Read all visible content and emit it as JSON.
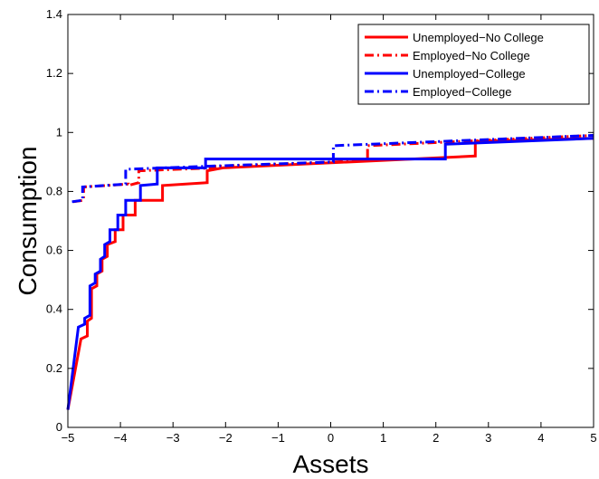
{
  "chart_data": {
    "type": "line",
    "title": "",
    "xlabel": "Assets",
    "ylabel": "Consumption",
    "xlim": [
      -5,
      5
    ],
    "ylim": [
      0,
      1.4
    ],
    "xticks": [
      -5,
      -4,
      -3,
      -2,
      -1,
      0,
      1,
      2,
      3,
      4,
      5
    ],
    "yticks": [
      0,
      0.2,
      0.4,
      0.6,
      0.8,
      1,
      1.2,
      1.4
    ],
    "xtick_labels": [
      "−5",
      "−4",
      "−3",
      "−2",
      "−1",
      "0",
      "1",
      "2",
      "3",
      "4",
      "5"
    ],
    "ytick_labels": [
      "0",
      "0.2",
      "0.4",
      "0.6",
      "0.8",
      "1",
      "1.2",
      "1.4"
    ],
    "grid": false,
    "legend_position": "top-right",
    "series": [
      {
        "name": "Unemployed−No College",
        "color": "#ff0000",
        "style": "solid",
        "x": [
          -5,
          -4.75,
          -4.63,
          -4.63,
          -4.55,
          -4.55,
          -4.45,
          -4.45,
          -4.35,
          -4.35,
          -4.25,
          -4.25,
          -4.1,
          -4.1,
          -3.95,
          -3.95,
          -3.72,
          -3.72,
          -3.2,
          -3.2,
          -2.35,
          -2.35,
          -2.05,
          -2.05,
          2.75,
          2.75,
          5
        ],
        "y": [
          0.06,
          0.3,
          0.31,
          0.36,
          0.37,
          0.47,
          0.48,
          0.52,
          0.53,
          0.57,
          0.58,
          0.62,
          0.63,
          0.67,
          0.67,
          0.72,
          0.72,
          0.77,
          0.77,
          0.82,
          0.83,
          0.87,
          0.88,
          0.88,
          0.92,
          0.97,
          0.98
        ]
      },
      {
        "name": "Employed−No College",
        "color": "#ff0000",
        "style": "dashdot",
        "x": [
          -4.9,
          -4.7,
          -4.7,
          -3.85,
          -3.85,
          -3.65,
          -3.65,
          -2.2,
          -2.2,
          0.05,
          0.05,
          0.7,
          0.7,
          5
        ],
        "y": [
          0.765,
          0.77,
          0.815,
          0.825,
          0.82,
          0.83,
          0.87,
          0.88,
          0.885,
          0.9,
          0.9,
          0.905,
          0.955,
          0.99
        ]
      },
      {
        "name": "Unemployed−College",
        "color": "#0000ff",
        "style": "solid",
        "x": [
          -5,
          -4.8,
          -4.68,
          -4.68,
          -4.58,
          -4.58,
          -4.48,
          -4.48,
          -4.38,
          -4.38,
          -4.3,
          -4.3,
          -4.2,
          -4.2,
          -4.05,
          -4.05,
          -3.9,
          -3.9,
          -3.62,
          -3.62,
          -3.3,
          -3.3,
          -2.38,
          -2.38,
          2.18,
          2.18,
          5
        ],
        "y": [
          0.06,
          0.34,
          0.35,
          0.37,
          0.38,
          0.48,
          0.49,
          0.52,
          0.53,
          0.57,
          0.58,
          0.62,
          0.63,
          0.67,
          0.67,
          0.72,
          0.72,
          0.77,
          0.77,
          0.82,
          0.825,
          0.88,
          0.88,
          0.91,
          0.91,
          0.96,
          0.98
        ]
      },
      {
        "name": "Employed−College",
        "color": "#0000ff",
        "style": "dashdot",
        "x": [
          -4.92,
          -4.72,
          -4.72,
          -3.9,
          -3.9,
          -2.4,
          -2.4,
          0.05,
          0.05,
          5
        ],
        "y": [
          0.765,
          0.77,
          0.815,
          0.825,
          0.875,
          0.885,
          0.885,
          0.9,
          0.955,
          0.99
        ]
      }
    ]
  }
}
